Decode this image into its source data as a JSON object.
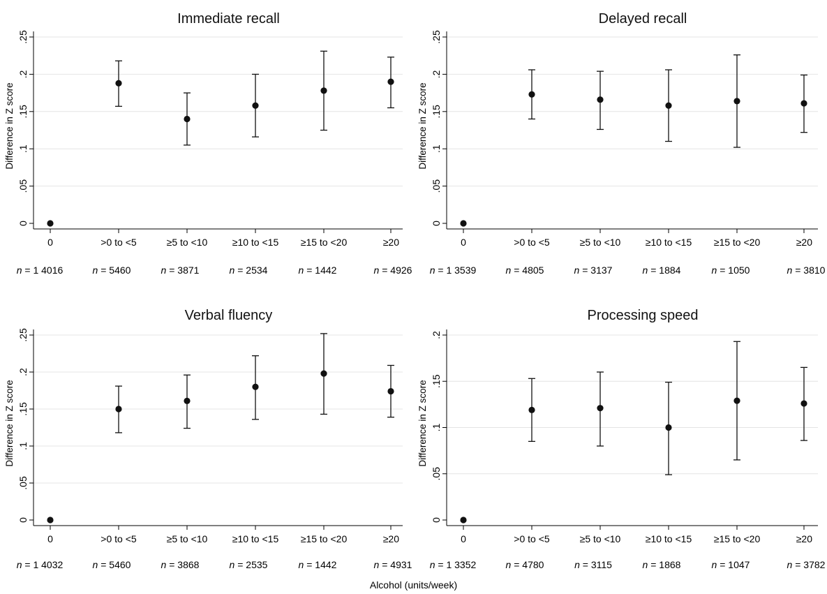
{
  "figure": {
    "xlabel": "Alcohol (units/week)",
    "n_prefix": "n",
    "n_equals": "= "
  },
  "chart_data": [
    {
      "type": "scatter",
      "title": "Immediate recall",
      "ylabel": "Difference in Z score",
      "ylim": [
        0,
        0.25
      ],
      "yticks": [
        0,
        0.05,
        0.1,
        0.15,
        0.2,
        0.25
      ],
      "ytick_labels": [
        "0",
        ".05",
        ".1",
        ".15",
        ".2",
        ".25"
      ],
      "categories": [
        "0",
        ">0 to <5",
        "≥5 to <10",
        "≥10 to <15",
        "≥15 to <20",
        "≥20"
      ],
      "values": [
        0,
        0.188,
        0.14,
        0.158,
        0.178,
        0.19
      ],
      "ci_low": [
        null,
        0.157,
        0.105,
        0.116,
        0.125,
        0.155
      ],
      "ci_high": [
        null,
        0.218,
        0.175,
        0.2,
        0.231,
        0.223
      ],
      "n_labels": [
        "1 4016",
        "5460",
        "3871",
        "2534",
        "1442",
        "4926"
      ],
      "grid": true
    },
    {
      "type": "scatter",
      "title": "Delayed recall",
      "ylabel": "Difference in Z score",
      "ylim": [
        0,
        0.25
      ],
      "yticks": [
        0,
        0.05,
        0.1,
        0.15,
        0.2,
        0.25
      ],
      "ytick_labels": [
        "0",
        ".05",
        ".1",
        ".15",
        ".2",
        ".25"
      ],
      "categories": [
        "0",
        ">0 to <5",
        "≥5 to <10",
        "≥10 to <15",
        "≥15 to <20",
        "≥20"
      ],
      "values": [
        0,
        0.173,
        0.166,
        0.158,
        0.164,
        0.161
      ],
      "ci_low": [
        null,
        0.14,
        0.126,
        0.11,
        0.102,
        0.122
      ],
      "ci_high": [
        null,
        0.206,
        0.204,
        0.206,
        0.226,
        0.199
      ],
      "n_labels": [
        "1 3539",
        "4805",
        "3137",
        "1884",
        "1050",
        "3810"
      ],
      "grid": true
    },
    {
      "type": "scatter",
      "title": "Verbal fluency",
      "ylabel": "Difference in Z score",
      "ylim": [
        0,
        0.25
      ],
      "yticks": [
        0,
        0.05,
        0.1,
        0.15,
        0.2,
        0.25
      ],
      "ytick_labels": [
        "0",
        ".05",
        ".1",
        ".15",
        ".2",
        ".25"
      ],
      "categories": [
        "0",
        ">0 to <5",
        "≥5 to <10",
        "≥10 to <15",
        "≥15 to <20",
        "≥20"
      ],
      "values": [
        0,
        0.15,
        0.161,
        0.18,
        0.198,
        0.174
      ],
      "ci_low": [
        null,
        0.118,
        0.124,
        0.136,
        0.143,
        0.139
      ],
      "ci_high": [
        null,
        0.181,
        0.196,
        0.222,
        0.252,
        0.209
      ],
      "n_labels": [
        "1 4032",
        "5460",
        "3868",
        "2535",
        "1442",
        "4931"
      ],
      "grid": true
    },
    {
      "type": "scatter",
      "title": "Processing speed",
      "ylabel": "Difference in Z score",
      "ylim": [
        0,
        0.2
      ],
      "yticks": [
        0,
        0.05,
        0.1,
        0.15,
        0.2
      ],
      "ytick_labels": [
        "0",
        ".05",
        ".1",
        ".15",
        ".2"
      ],
      "categories": [
        "0",
        ">0 to <5",
        "≥5 to <10",
        "≥10 to <15",
        "≥15 to <20",
        "≥20"
      ],
      "values": [
        0,
        0.119,
        0.121,
        0.1,
        0.129,
        0.126
      ],
      "ci_low": [
        null,
        0.085,
        0.08,
        0.049,
        0.065,
        0.086
      ],
      "ci_high": [
        null,
        0.153,
        0.16,
        0.149,
        0.193,
        0.165
      ],
      "n_labels": [
        "1 3352",
        "4780",
        "3115",
        "1868",
        "1047",
        "3782"
      ],
      "grid": true
    }
  ]
}
